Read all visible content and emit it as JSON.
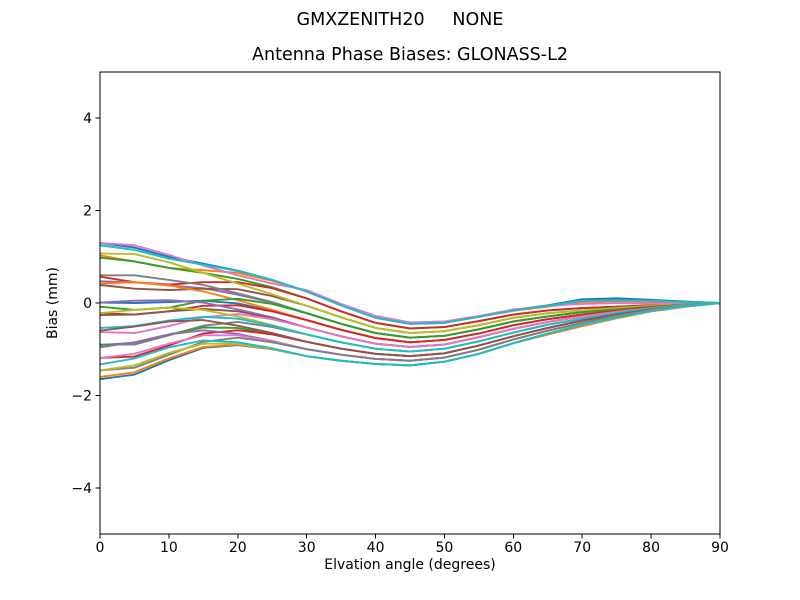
{
  "figure": {
    "suptitle": "GMXZENITH20     NONE",
    "background": "#ffffff"
  },
  "chart_data": {
    "type": "line",
    "title": "Antenna Phase Biases: GLONASS-L2",
    "xlabel": "Elvation angle (degrees)",
    "ylabel": "Bias (mm)",
    "xlim": [
      0,
      90
    ],
    "ylim": [
      -5,
      5
    ],
    "xticks": [
      0,
      10,
      20,
      30,
      40,
      50,
      60,
      70,
      80,
      90
    ],
    "xtick_labels": [
      "0",
      "10",
      "20",
      "30",
      "40",
      "50",
      "60",
      "70",
      "80",
      "90"
    ],
    "yticks": [
      -4,
      -2,
      0,
      2,
      4
    ],
    "ytick_labels": [
      "−4",
      "−2",
      "0",
      "2",
      "4"
    ],
    "grid": false,
    "legend": "none",
    "axis_color": "#000000",
    "line_width": 1.9,
    "palette": [
      "#1f77b4",
      "#ff7f0e",
      "#2ca02c",
      "#d62728",
      "#9467bd",
      "#8c564b",
      "#e377c2",
      "#7f7f7f",
      "#bcbd22",
      "#17becf"
    ],
    "x": [
      0,
      5,
      10,
      15,
      20,
      25,
      30,
      35,
      40,
      45,
      50,
      55,
      60,
      65,
      70,
      75,
      80,
      85,
      90
    ],
    "series": [
      [
        1.3,
        1.2,
        1.0,
        0.85,
        0.7,
        0.5,
        0.25,
        -0.05,
        -0.32,
        -0.45,
        -0.43,
        -0.3,
        -0.15,
        -0.05,
        0.08,
        0.1,
        0.07,
        0.03,
        0.0
      ],
      [
        1.03,
        0.9,
        0.76,
        0.71,
        0.65,
        0.48,
        0.25,
        -0.05,
        -0.32,
        -0.45,
        -0.43,
        -0.3,
        -0.17,
        -0.08,
        0.02,
        0.04,
        0.03,
        0.01,
        0.0
      ],
      [
        0.98,
        0.9,
        0.76,
        0.65,
        0.52,
        0.34,
        0.1,
        -0.18,
        -0.43,
        -0.55,
        -0.52,
        -0.39,
        -0.25,
        -0.16,
        -0.11,
        -0.08,
        -0.05,
        -0.02,
        0.0
      ],
      [
        0.57,
        0.45,
        0.4,
        0.45,
        0.45,
        0.32,
        0.1,
        -0.18,
        -0.43,
        -0.55,
        -0.52,
        -0.39,
        -0.25,
        -0.16,
        -0.11,
        -0.08,
        -0.05,
        -0.02,
        0.0
      ],
      [
        0.47,
        0.45,
        0.38,
        0.32,
        0.18,
        0.01,
        -0.22,
        -0.45,
        -0.65,
        -0.75,
        -0.71,
        -0.57,
        -0.4,
        -0.29,
        -0.2,
        -0.14,
        -0.08,
        -0.03,
        0.0
      ],
      [
        0.39,
        0.31,
        0.28,
        0.31,
        0.3,
        0.15,
        -0.06,
        -0.31,
        -0.54,
        -0.65,
        -0.61,
        -0.48,
        -0.32,
        -0.22,
        -0.16,
        -0.11,
        -0.06,
        -0.02,
        0.0
      ],
      [
        1.3,
        1.25,
        1.04,
        0.81,
        0.6,
        0.42,
        0.28,
        -0.02,
        -0.28,
        -0.42,
        -0.4,
        -0.28,
        -0.14,
        -0.06,
        -0.02,
        0.0,
        -0.01,
        -0.01,
        0.0
      ],
      [
        0.6,
        0.6,
        0.5,
        0.39,
        0.21,
        0.02,
        -0.22,
        -0.45,
        -0.65,
        -0.75,
        -0.71,
        -0.57,
        -0.4,
        -0.29,
        -0.2,
        -0.14,
        -0.08,
        -0.03,
        0.0
      ],
      [
        1.07,
        1.06,
        0.88,
        0.65,
        0.42,
        0.19,
        -0.06,
        -0.31,
        -0.54,
        -0.65,
        -0.61,
        -0.48,
        -0.32,
        -0.22,
        -0.16,
        -0.11,
        -0.06,
        -0.02,
        0.0
      ],
      [
        1.25,
        1.15,
        0.96,
        0.83,
        0.69,
        0.5,
        0.25,
        -0.05,
        -0.32,
        -0.45,
        -0.43,
        -0.3,
        -0.16,
        -0.06,
        0.05,
        0.06,
        0.05,
        0.02,
        0.0
      ],
      [
        0.01,
        0.0,
        0.02,
        0.05,
        -0.01,
        -0.17,
        -0.37,
        -0.58,
        -0.76,
        -0.85,
        -0.8,
        -0.66,
        -0.48,
        -0.35,
        -0.25,
        -0.17,
        -0.09,
        -0.04,
        0.0
      ],
      [
        0.42,
        0.45,
        0.38,
        0.25,
        0.06,
        -0.15,
        -0.37,
        -0.58,
        -0.76,
        -0.85,
        -0.8,
        -0.66,
        -0.48,
        -0.35,
        -0.25,
        -0.17,
        -0.09,
        -0.04,
        0.0
      ],
      [
        -0.08,
        -0.15,
        -0.1,
        0.05,
        0.09,
        -0.02,
        -0.22,
        -0.45,
        -0.65,
        -0.75,
        -0.71,
        -0.57,
        -0.4,
        -0.29,
        -0.2,
        -0.14,
        -0.08,
        -0.03,
        0.0
      ],
      [
        -0.22,
        -0.25,
        -0.18,
        -0.06,
        -0.05,
        -0.18,
        -0.37,
        -0.58,
        -0.76,
        -0.85,
        -0.8,
        -0.66,
        -0.48,
        -0.35,
        -0.25,
        -0.17,
        -0.09,
        -0.04,
        0.0
      ],
      [
        0.01,
        0.05,
        0.06,
        0.01,
        -0.14,
        -0.31,
        -0.53,
        -0.72,
        -0.88,
        -0.95,
        -0.9,
        -0.74,
        -0.56,
        -0.41,
        -0.29,
        -0.19,
        -0.11,
        -0.04,
        0.0
      ],
      [
        -0.26,
        -0.25,
        -0.18,
        -0.13,
        -0.18,
        -0.33,
        -0.53,
        -0.72,
        -0.88,
        -0.95,
        -0.9,
        -0.74,
        -0.56,
        -0.41,
        -0.29,
        -0.19,
        -0.11,
        -0.04,
        0.0
      ],
      [
        -0.63,
        -0.65,
        -0.5,
        -0.31,
        -0.24,
        -0.35,
        -0.53,
        -0.72,
        -0.88,
        -0.95,
        -0.9,
        -0.74,
        -0.56,
        -0.41,
        -0.29,
        -0.19,
        -0.11,
        -0.04,
        0.0
      ],
      [
        -0.9,
        -0.9,
        -0.7,
        -0.49,
        -0.41,
        -0.52,
        -0.68,
        -0.85,
        -0.99,
        -1.05,
        -0.99,
        -0.83,
        -0.64,
        -0.47,
        -0.34,
        -0.22,
        -0.12,
        -0.05,
        0.0
      ],
      [
        -0.22,
        -0.15,
        -0.1,
        -0.15,
        -0.29,
        -0.48,
        -0.68,
        -0.85,
        -0.99,
        -1.05,
        -0.99,
        -0.83,
        -0.64,
        -0.47,
        -0.34,
        -0.22,
        -0.12,
        -0.05,
        0.0
      ],
      [
        -0.54,
        -0.5,
        -0.38,
        -0.3,
        -0.34,
        -0.49,
        -0.68,
        -0.85,
        -0.99,
        -1.05,
        -0.99,
        -0.83,
        -0.64,
        -0.47,
        -0.34,
        -0.22,
        -0.12,
        -0.05,
        0.0
      ],
      [
        -1.65,
        -1.55,
        -1.24,
        -0.97,
        -0.91,
        -1.0,
        -1.15,
        -1.25,
        -1.32,
        -1.35,
        -1.27,
        -1.1,
        -0.87,
        -0.68,
        -0.5,
        -0.33,
        -0.18,
        -0.08,
        0.0
      ],
      [
        -1.6,
        -1.5,
        -1.2,
        -0.95,
        -0.9,
        -1.0,
        -1.15,
        -1.25,
        -1.32,
        -1.35,
        -1.27,
        -1.1,
        -0.87,
        -0.68,
        -0.5,
        -0.33,
        -0.18,
        -0.08,
        0.0
      ],
      [
        -0.91,
        -0.86,
        -0.68,
        -0.53,
        -0.54,
        -0.67,
        -0.84,
        -0.99,
        -1.1,
        -1.15,
        -1.09,
        -0.92,
        -0.72,
        -0.54,
        -0.38,
        -0.25,
        -0.14,
        -0.06,
        0.0
      ],
      [
        -1.19,
        -1.16,
        -0.92,
        -0.66,
        -0.59,
        -0.68,
        -0.84,
        -0.99,
        -1.1,
        -1.15,
        -1.09,
        -0.92,
        -0.72,
        -0.54,
        -0.38,
        -0.25,
        -0.14,
        -0.06,
        0.0
      ],
      [
        -0.96,
        -0.85,
        -0.68,
        -0.59,
        -0.67,
        -0.82,
        -1.0,
        -1.12,
        -1.21,
        -1.25,
        -1.18,
        -1.01,
        -0.79,
        -0.6,
        -0.43,
        -0.28,
        -0.15,
        -0.06,
        0.0
      ],
      [
        -0.6,
        -0.51,
        -0.4,
        -0.37,
        -0.49,
        -0.65,
        -0.84,
        -0.99,
        -1.1,
        -1.15,
        -1.09,
        -0.92,
        -0.72,
        -0.54,
        -0.38,
        -0.25,
        -0.14,
        -0.06,
        0.0
      ],
      [
        -1.19,
        -1.1,
        -0.88,
        -0.7,
        -0.7,
        -0.83,
        -1.0,
        -1.12,
        -1.21,
        -1.25,
        -1.18,
        -1.01,
        -0.79,
        -0.6,
        -0.43,
        -0.28,
        -0.15,
        -0.06,
        0.0
      ],
      [
        -1.46,
        -1.4,
        -1.12,
        -0.84,
        -0.75,
        -0.85,
        -1.0,
        -1.12,
        -1.21,
        -1.25,
        -1.18,
        -1.01,
        -0.79,
        -0.6,
        -0.43,
        -0.28,
        -0.15,
        -0.06,
        0.0
      ],
      [
        -1.46,
        -1.35,
        -1.08,
        -0.88,
        -0.88,
        -0.99,
        -1.15,
        -1.25,
        -1.32,
        -1.35,
        -1.27,
        -1.1,
        -0.87,
        -0.66,
        -0.47,
        -0.31,
        -0.17,
        -0.07,
        0.0
      ],
      [
        -1.33,
        -1.2,
        -0.96,
        -0.81,
        -0.85,
        -0.98,
        -1.15,
        -1.25,
        -1.32,
        -1.35,
        -1.27,
        -1.1,
        -0.87,
        -0.66,
        -0.47,
        -0.31,
        -0.17,
        -0.07,
        0.0
      ]
    ]
  }
}
